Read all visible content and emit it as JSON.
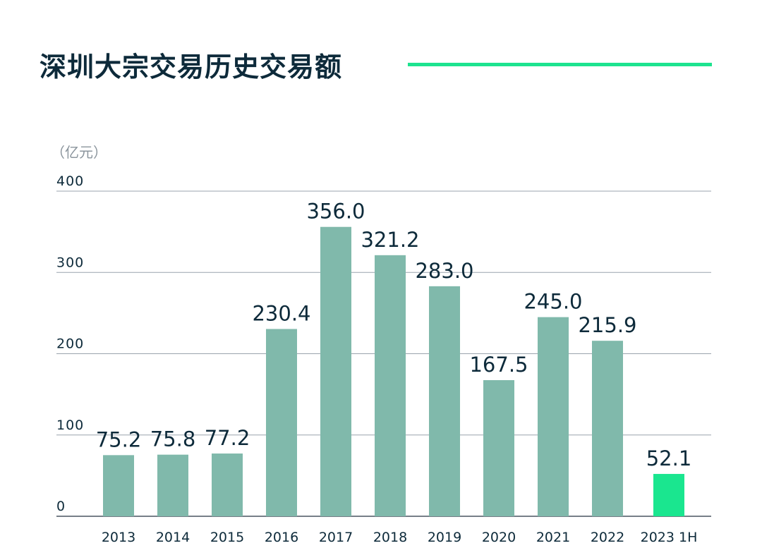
{
  "colors": {
    "title": "#0d2a3a",
    "accent": "#1de38f",
    "bar": "#80b9ab",
    "bar_highlight": "#1ae68f",
    "grid": "#9aa3ad",
    "axis_text": "#0d2a3a"
  },
  "chart_data": {
    "type": "bar",
    "title": "深圳大宗交易历史交易额",
    "ylabel": "（亿元）",
    "xlabel": "",
    "categories": [
      "2013",
      "2014",
      "2015",
      "2016",
      "2017",
      "2018",
      "2019",
      "2020",
      "2021",
      "2022",
      "2023 1H"
    ],
    "values": [
      75.2,
      75.8,
      77.2,
      230.4,
      356.0,
      321.2,
      283.0,
      167.5,
      245.0,
      215.9,
      52.1
    ],
    "data_labels": [
      "75.2",
      "75.8",
      "77.2",
      "230.4",
      "356.0",
      "321.2",
      "283.0",
      "167.5",
      "245.0",
      "215.9",
      "52.1"
    ],
    "highlight_index": 10,
    "ylim": [
      0,
      400
    ],
    "yticks": [
      0,
      100,
      200,
      300,
      400
    ],
    "ytick_labels": [
      "0",
      "100",
      "200",
      "300",
      "400"
    ],
    "grid": true,
    "legend": "none"
  }
}
